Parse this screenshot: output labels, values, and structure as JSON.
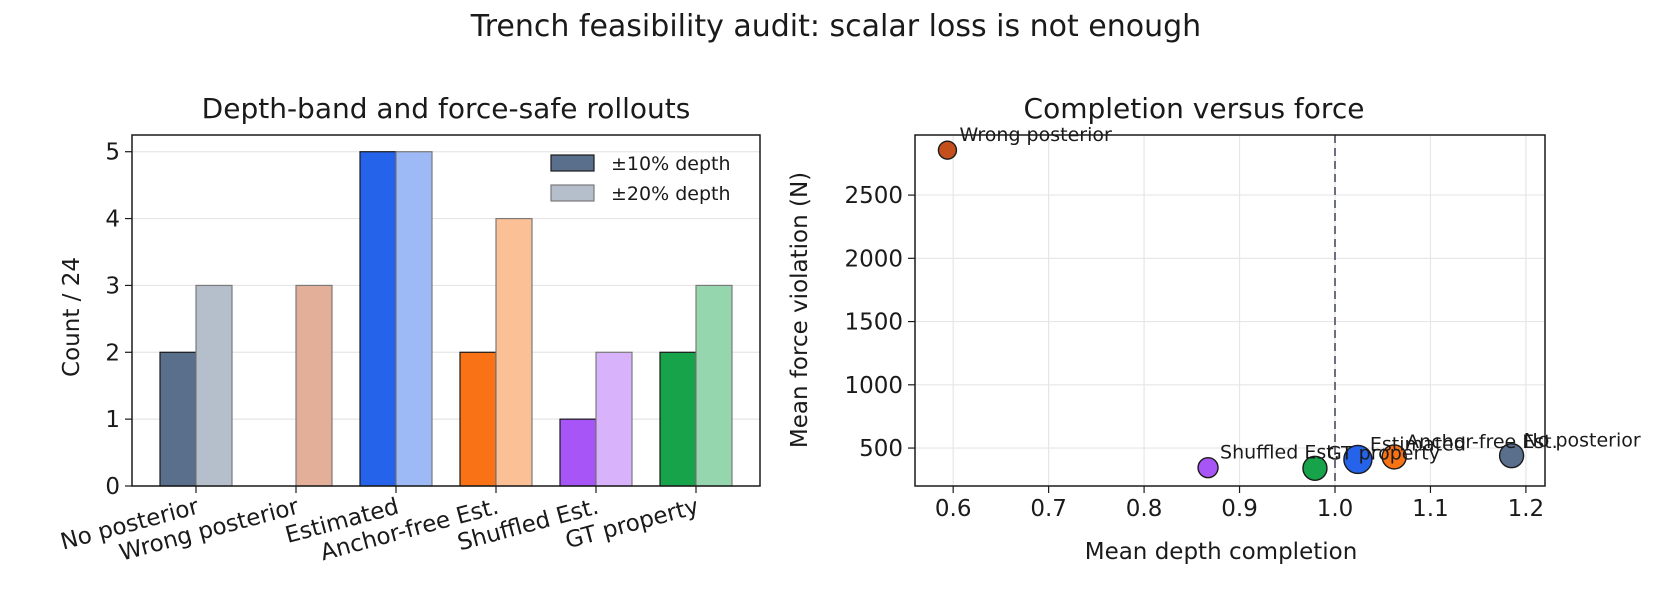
{
  "figure_title": "Trench feasibility audit: scalar loss is not enough",
  "chart_data": [
    {
      "type": "bar",
      "title": "Depth-band and force-safe rollouts",
      "ylabel": "Count / 24",
      "xlabel": "",
      "ylim": [
        0,
        5.25
      ],
      "yticks": [
        0,
        1,
        2,
        3,
        4,
        5
      ],
      "categories": [
        "No posterior",
        "Wrong posterior",
        "Estimated",
        "Anchor-free Est.",
        "Shuffled Est.",
        "GT property"
      ],
      "category_colors": [
        "#5a6f8c",
        "#c44e1c",
        "#2563eb",
        "#f97316",
        "#a855f7",
        "#16a34a"
      ],
      "series": [
        {
          "name": "±10% depth",
          "values": [
            2,
            0,
            5,
            2,
            1,
            2
          ]
        },
        {
          "name": "±20% depth",
          "values": [
            3,
            3,
            5,
            4,
            2,
            3
          ]
        }
      ],
      "legend_position": "top-right",
      "grid": "y"
    },
    {
      "type": "scatter",
      "title": "Completion versus force",
      "xlabel": "Mean depth completion",
      "ylabel": "Mean force violation (N)",
      "xlim": [
        0.56,
        1.22
      ],
      "ylim": [
        200,
        2975
      ],
      "xticks": [
        0.6,
        0.7,
        0.8,
        0.9,
        1.0,
        1.1,
        1.2
      ],
      "xtick_labels": [
        "0.6",
        "0.7",
        "0.8",
        "0.9",
        "1.0",
        "1.1",
        "1.2"
      ],
      "yticks": [
        500,
        1000,
        1500,
        2000,
        2500
      ],
      "reference_line_x": 1.0,
      "grid": "both",
      "points": [
        {
          "label": "No posterior",
          "x": 1.185,
          "y": 440,
          "color": "#5a6f8c"
        },
        {
          "label": "Wrong posterior",
          "x": 0.594,
          "y": 2855,
          "color": "#c44e1c"
        },
        {
          "label": "Estimated",
          "x": 1.024,
          "y": 410,
          "color": "#2563eb"
        },
        {
          "label": "Anchor-free Est.",
          "x": 1.062,
          "y": 430,
          "color": "#f97316"
        },
        {
          "label": "Shuffled Est.",
          "x": 0.867,
          "y": 345,
          "color": "#a855f7"
        },
        {
          "label": "GT property",
          "x": 0.979,
          "y": 340,
          "color": "#16a34a"
        }
      ]
    }
  ]
}
